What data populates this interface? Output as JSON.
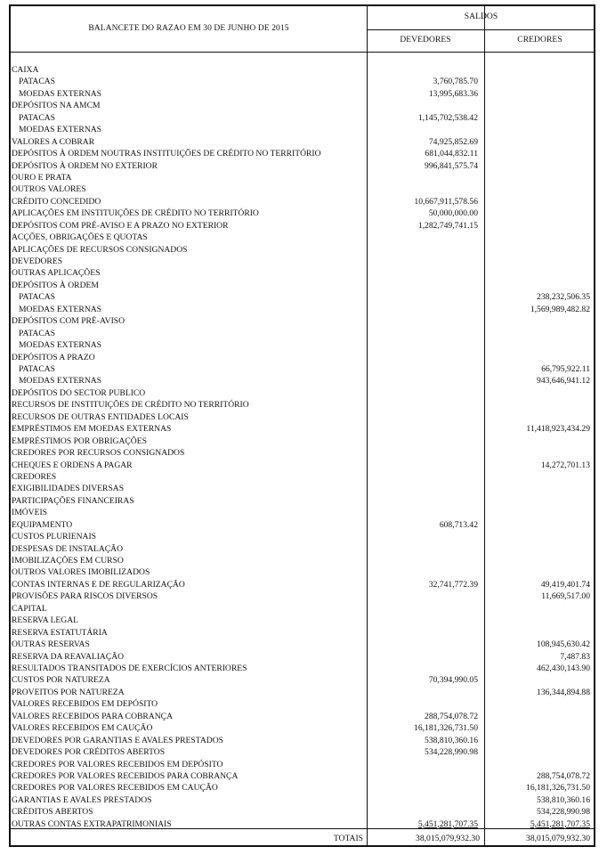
{
  "header": {
    "title": "BALANCETE DO RAZAO EM 30 DE JUNHO DE 2015",
    "group": "SALDOS",
    "col_devedores": "DEVEDORES",
    "col_credores": "CREDORES"
  },
  "rows": [
    {
      "label": "CAIXA",
      "sub": false,
      "dev": "",
      "cred": ""
    },
    {
      "label": "PATACAS",
      "sub": true,
      "dev": "3,760,785.70",
      "cred": ""
    },
    {
      "label": "MOEDAS EXTERNAS",
      "sub": true,
      "dev": "13,995,683.36",
      "cred": ""
    },
    {
      "label": "DEPÓSITOS NA AMCM",
      "sub": false,
      "dev": "",
      "cred": ""
    },
    {
      "label": "PATACAS",
      "sub": true,
      "dev": "1,145,702,538.42",
      "cred": ""
    },
    {
      "label": "MOEDAS EXTERNAS",
      "sub": true,
      "dev": "",
      "cred": ""
    },
    {
      "label": "VALORES A COBRAR",
      "sub": false,
      "dev": "74,925,852.69",
      "cred": ""
    },
    {
      "label": "DEPÓSITOS À ORDEM NOUTRAS INSTITUIÇÕES DE CRÉDITO NO TERRITÓRIO",
      "sub": false,
      "dev": "681,044,832.11",
      "cred": ""
    },
    {
      "label": "DEPÓSITOS À ORDEM NO EXTERIOR",
      "sub": false,
      "dev": "996,841,575.74",
      "cred": ""
    },
    {
      "label": "OURO E PRATA",
      "sub": false,
      "dev": "",
      "cred": ""
    },
    {
      "label": "OUTROS VALORES",
      "sub": false,
      "dev": "",
      "cred": ""
    },
    {
      "label": "CRÉDITO CONCEDIDO",
      "sub": false,
      "dev": "10,667,911,578.56",
      "cred": ""
    },
    {
      "label": "APLICAÇÕES EM INSTITUIÇÕES DE CRÉDITO NO TERRITÓRIO",
      "sub": false,
      "dev": "50,000,000.00",
      "cred": ""
    },
    {
      "label": "DEPÓSITOS COM PRÉ-AVISO E A PRAZO NO EXTERIOR",
      "sub": false,
      "dev": "1,282,749,741.15",
      "cred": ""
    },
    {
      "label": "ACÇÕES, OBRIGAÇÕES E QUOTAS",
      "sub": false,
      "dev": "",
      "cred": ""
    },
    {
      "label": "APLICAÇÕES DE RECURSOS CONSIGNADOS",
      "sub": false,
      "dev": "",
      "cred": ""
    },
    {
      "label": "DEVEDORES",
      "sub": false,
      "dev": "",
      "cred": ""
    },
    {
      "label": "OUTRAS APLICAÇÕES",
      "sub": false,
      "dev": "",
      "cred": ""
    },
    {
      "label": "DEPÓSITOS À ORDEM",
      "sub": false,
      "dev": "",
      "cred": ""
    },
    {
      "label": "PATACAS",
      "sub": true,
      "dev": "",
      "cred": "238,232,506.35"
    },
    {
      "label": "MOEDAS EXTERNAS",
      "sub": true,
      "dev": "",
      "cred": "1,569,989,482.82"
    },
    {
      "label": "DEPÓSITOS COM PRÉ-AVISO",
      "sub": false,
      "dev": "",
      "cred": ""
    },
    {
      "label": "PATACAS",
      "sub": true,
      "dev": "",
      "cred": ""
    },
    {
      "label": "MOEDAS EXTERNAS",
      "sub": true,
      "dev": "",
      "cred": ""
    },
    {
      "label": "DEPÓSITOS A PRAZO",
      "sub": false,
      "dev": "",
      "cred": ""
    },
    {
      "label": "PATACAS",
      "sub": true,
      "dev": "",
      "cred": "66,795,922.11"
    },
    {
      "label": "MOEDAS EXTERNAS",
      "sub": true,
      "dev": "",
      "cred": "943,646,941.12"
    },
    {
      "label": "DEPÓSITOS DO SECTOR PUBLICO",
      "sub": false,
      "dev": "",
      "cred": ""
    },
    {
      "label": "RECURSOS DE INSTITUIÇÕES DE CRÉDITO NO TERRITÓRIO",
      "sub": false,
      "dev": "",
      "cred": ""
    },
    {
      "label": "RECURSOS DE OUTRAS ENTIDADES LOCAIS",
      "sub": false,
      "dev": "",
      "cred": ""
    },
    {
      "label": "EMPRÉSTIMOS EM MOEDAS EXTERNAS",
      "sub": false,
      "dev": "",
      "cred": "11,418,923,434.29"
    },
    {
      "label": "EMPRÉSTIMOS POR OBRIGAÇÕES",
      "sub": false,
      "dev": "",
      "cred": ""
    },
    {
      "label": "CREDORES POR RECURSOS CONSIGNADOS",
      "sub": false,
      "dev": "",
      "cred": ""
    },
    {
      "label": "CHEQUES E ORDENS A PAGAR",
      "sub": false,
      "dev": "",
      "cred": "14,272,701.13"
    },
    {
      "label": "CREDORES",
      "sub": false,
      "dev": "",
      "cred": ""
    },
    {
      "label": "EXIGIBILIDADES DIVERSAS",
      "sub": false,
      "dev": "",
      "cred": ""
    },
    {
      "label": "PARTICIPAÇÕES FINANCEIRAS",
      "sub": false,
      "dev": "",
      "cred": ""
    },
    {
      "label": "IMÓVEIS",
      "sub": false,
      "dev": "",
      "cred": ""
    },
    {
      "label": "EQUIPAMENTO",
      "sub": false,
      "dev": "608,713.42",
      "cred": ""
    },
    {
      "label": "CUSTOS PLURIENAIS",
      "sub": false,
      "dev": "",
      "cred": ""
    },
    {
      "label": "DESPESAS DE INSTALAÇÃO",
      "sub": false,
      "dev": "",
      "cred": ""
    },
    {
      "label": "IMOBILIZAÇÕES EM CURSO",
      "sub": false,
      "dev": "",
      "cred": ""
    },
    {
      "label": "OUTROS VALORES IMOBILIZADOS",
      "sub": false,
      "dev": "",
      "cred": ""
    },
    {
      "label": "CONTAS INTERNAS E DE REGULARIZAÇÃO",
      "sub": false,
      "dev": "32,741,772.39",
      "cred": "49,419,401.74"
    },
    {
      "label": "PROVISÕES PARA RISCOS DIVERSOS",
      "sub": false,
      "dev": "",
      "cred": "11,669,517.00"
    },
    {
      "label": "CAPITAL",
      "sub": false,
      "dev": "",
      "cred": ""
    },
    {
      "label": "RESERVA LEGAL",
      "sub": false,
      "dev": "",
      "cred": ""
    },
    {
      "label": "RESERVA ESTATUTÁRIA",
      "sub": false,
      "dev": "",
      "cred": ""
    },
    {
      "label": "OUTRAS RESERVAS",
      "sub": false,
      "dev": "",
      "cred": "108,945,630.42"
    },
    {
      "label": "RESERVA DA REAVALIAÇÃO",
      "sub": false,
      "dev": "",
      "cred": "7,487.83"
    },
    {
      "label": "RESULTADOS TRANSITADOS DE EXERCÍCIOS ANTERIORES",
      "sub": false,
      "dev": "",
      "cred": "462,430,143.90"
    },
    {
      "label": "CUSTOS POR NATUREZA",
      "sub": false,
      "dev": "70,394,990.05",
      "cred": ""
    },
    {
      "label": "PROVEITOS POR NATUREZA",
      "sub": false,
      "dev": "",
      "cred": "136,344,894.88"
    },
    {
      "label": "VALORES RECEBIDOS EM DEPÓSITO",
      "sub": false,
      "dev": "",
      "cred": ""
    },
    {
      "label": "VALORES RECEBIDOS PARA COBRANÇA",
      "sub": false,
      "dev": "288,754,078.72",
      "cred": ""
    },
    {
      "label": "VALORES RECEBIDOS EM CAUÇÃO",
      "sub": false,
      "dev": "16,181,326,731.50",
      "cred": ""
    },
    {
      "label": "DEVEDORES POR GARANTIAS E AVALES PRESTADOS",
      "sub": false,
      "dev": "538,810,360.16",
      "cred": ""
    },
    {
      "label": "DEVEDORES POR CRÉDITOS ABERTOS",
      "sub": false,
      "dev": "534,228,990.98",
      "cred": ""
    },
    {
      "label": "CREDORES POR VALORES RECEBIDOS EM DEPÓSITO",
      "sub": false,
      "dev": "",
      "cred": ""
    },
    {
      "label": "CREDORES POR VALORES RECEBIDOS PARA COBRANÇA",
      "sub": false,
      "dev": "",
      "cred": "288,754,078.72"
    },
    {
      "label": "CREDORES POR VALORES RECEBIDOS EM CAUÇÃO",
      "sub": false,
      "dev": "",
      "cred": "16,181,326,731.50"
    },
    {
      "label": "GARANTIAS E AVALES PRESTADOS",
      "sub": false,
      "dev": "",
      "cred": "538,810,360.16"
    },
    {
      "label": "CRÉDITOS ABERTOS",
      "sub": false,
      "dev": "",
      "cred": "534,228,990.98"
    },
    {
      "label": "OUTRAS CONTAS EXTRAPATRIMONIAIS",
      "sub": false,
      "dev": "5,451,281,707.35",
      "cred": "5,451,281,707.35",
      "underline": true
    }
  ],
  "totals": {
    "label": "TOTAIS",
    "dev": "38,015,079,932.30",
    "cred": "38,015,079,932.30"
  }
}
